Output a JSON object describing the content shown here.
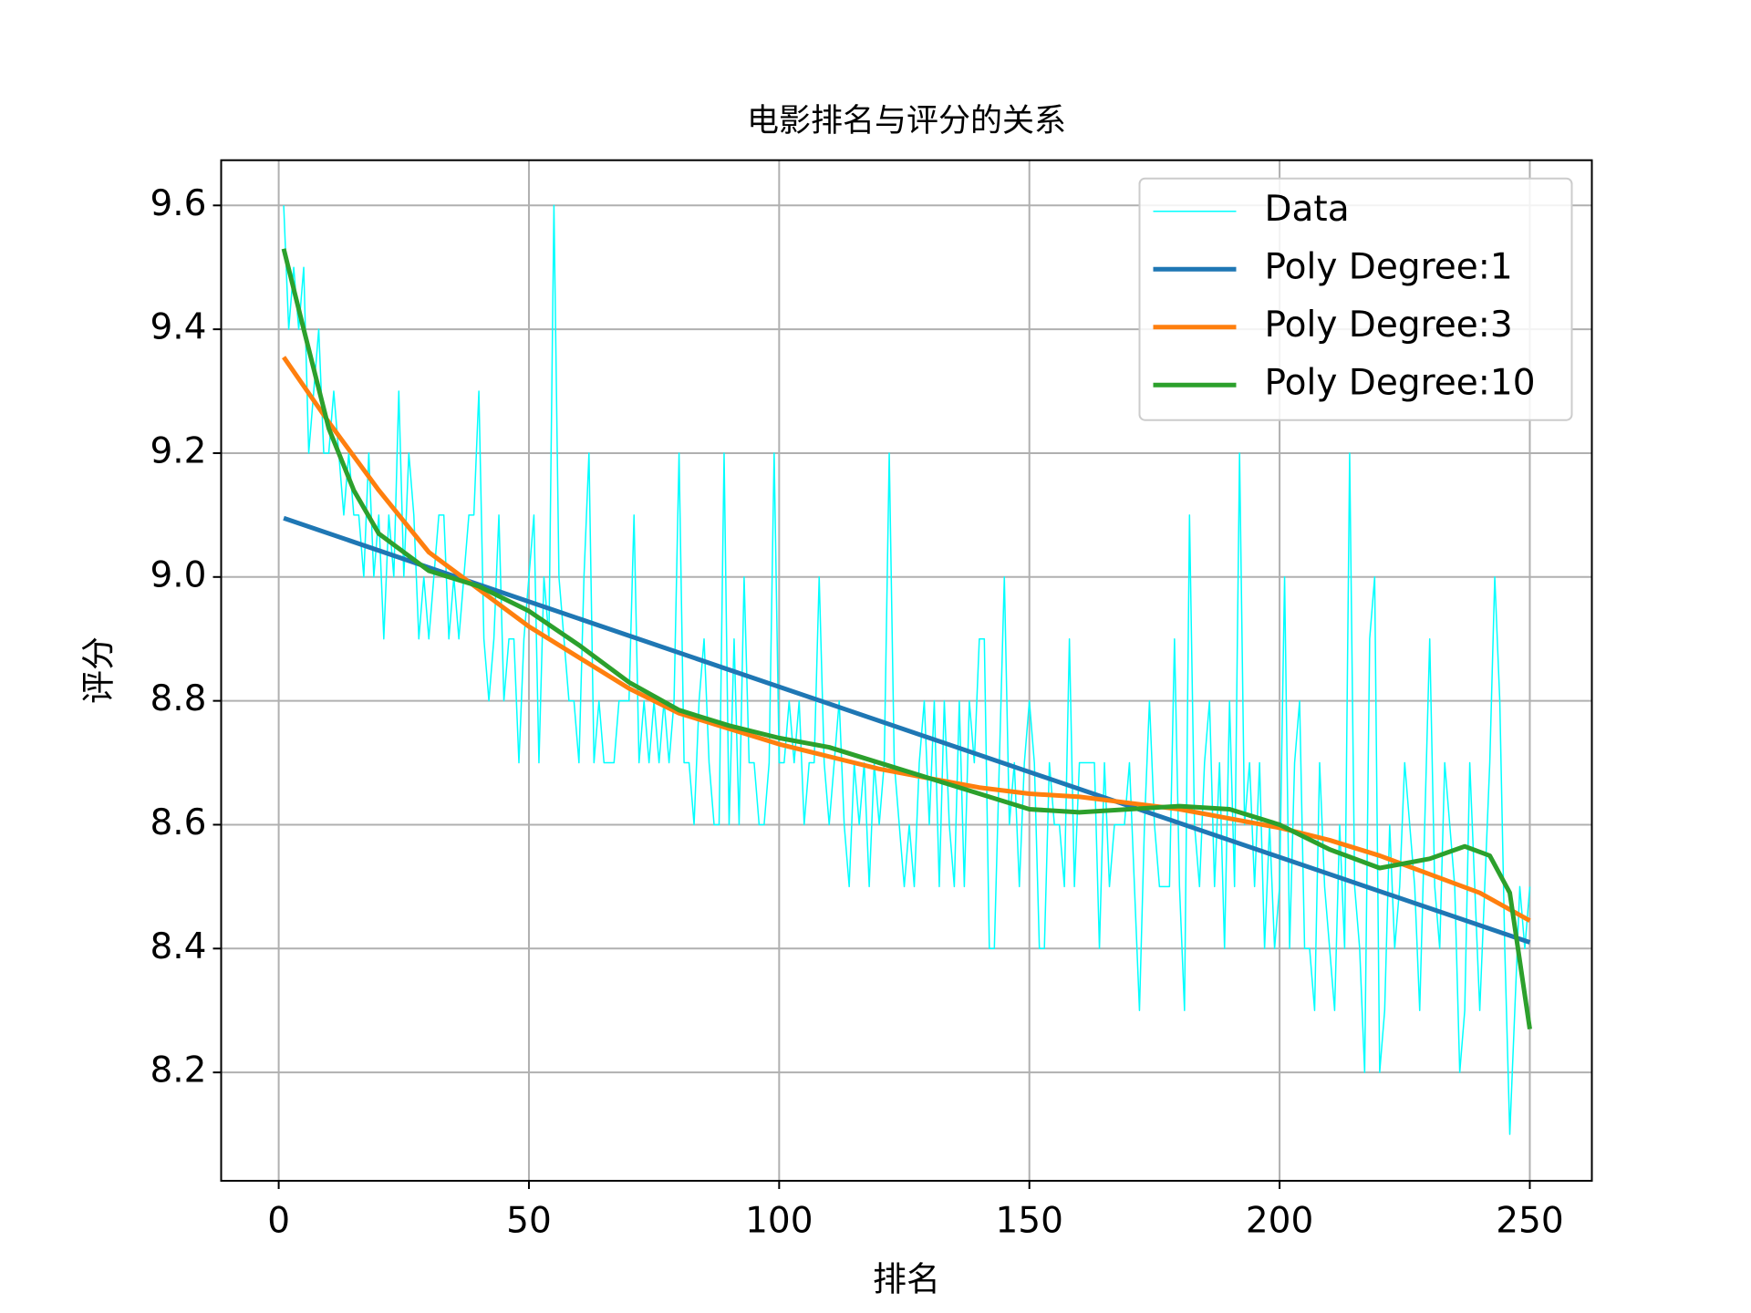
{
  "chart_data": {
    "type": "line",
    "title": "电影排名与评分的关系",
    "xlabel": "排名",
    "ylabel": "评分",
    "xlim": [
      -11.5,
      262.4
    ],
    "ylim": [
      8.025,
      9.673
    ],
    "xticks": [
      0,
      50,
      100,
      150,
      200,
      250
    ],
    "yticks": [
      8.2,
      8.4,
      8.6,
      8.8,
      {
        "value": 9,
        "label": "9.0"
      },
      9.2,
      9.4,
      9.6
    ],
    "grid": true,
    "legend": "upper right",
    "series": [
      {
        "name": "Data",
        "color": "#00ffff",
        "width": 1.5,
        "x": [
          1,
          2,
          3,
          4,
          5,
          6,
          7,
          8,
          9,
          10,
          11,
          12,
          13,
          14,
          15,
          16,
          17,
          18,
          19,
          20,
          21,
          22,
          23,
          24,
          25,
          26,
          27,
          28,
          29,
          30,
          31,
          32,
          33,
          34,
          35,
          36,
          37,
          38,
          39,
          40,
          41,
          42,
          43,
          44,
          45,
          46,
          47,
          48,
          49,
          50,
          51,
          52,
          53,
          54,
          55,
          56,
          57,
          58,
          59,
          60,
          61,
          62,
          63,
          64,
          65,
          66,
          67,
          68,
          69,
          70,
          71,
          72,
          73,
          74,
          75,
          76,
          77,
          78,
          79,
          80,
          81,
          82,
          83,
          84,
          85,
          86,
          87,
          88,
          89,
          90,
          91,
          92,
          93,
          94,
          95,
          96,
          97,
          98,
          99,
          100,
          101,
          102,
          103,
          104,
          105,
          106,
          107,
          108,
          109,
          110,
          111,
          112,
          113,
          114,
          115,
          116,
          117,
          118,
          119,
          120,
          121,
          122,
          123,
          124,
          125,
          126,
          127,
          128,
          129,
          130,
          131,
          132,
          133,
          134,
          135,
          136,
          137,
          138,
          139,
          140,
          141,
          142,
          143,
          144,
          145,
          146,
          147,
          148,
          149,
          150,
          151,
          152,
          153,
          154,
          155,
          156,
          157,
          158,
          159,
          160,
          161,
          162,
          163,
          164,
          165,
          166,
          167,
          168,
          169,
          170,
          171,
          172,
          173,
          174,
          175,
          176,
          177,
          178,
          179,
          180,
          181,
          182,
          183,
          184,
          185,
          186,
          187,
          188,
          189,
          190,
          191,
          192,
          193,
          194,
          195,
          196,
          197,
          198,
          199,
          200,
          201,
          202,
          203,
          204,
          205,
          206,
          207,
          208,
          209,
          210,
          211,
          212,
          213,
          214,
          215,
          216,
          217,
          218,
          219,
          220,
          221,
          222,
          223,
          224,
          225,
          226,
          227,
          228,
          229,
          230,
          231,
          232,
          233,
          234,
          235,
          236,
          237,
          238,
          239,
          240,
          241,
          242,
          243,
          244,
          245,
          246,
          247,
          248,
          249,
          250
        ],
        "values": [
          9.6,
          9.4,
          9.5,
          9.4,
          9.5,
          9.2,
          9.3,
          9.4,
          9.2,
          9.2,
          9.3,
          9.2,
          9.1,
          9.2,
          9.1,
          9.1,
          9.0,
          9.2,
          9.0,
          9.1,
          8.9,
          9.1,
          9.0,
          9.3,
          9.0,
          9.2,
          9.1,
          8.9,
          9.0,
          8.9,
          9.0,
          9.1,
          9.1,
          8.9,
          9.0,
          8.9,
          9.0,
          9.1,
          9.1,
          9.3,
          8.9,
          8.8,
          8.9,
          9.1,
          8.8,
          8.9,
          8.9,
          8.7,
          8.9,
          9.0,
          9.1,
          8.7,
          9.0,
          8.9,
          9.6,
          9.0,
          8.9,
          8.8,
          8.8,
          8.7,
          9.0,
          9.2,
          8.7,
          8.8,
          8.7,
          8.7,
          8.7,
          8.8,
          8.8,
          8.8,
          9.1,
          8.7,
          8.8,
          8.7,
          8.8,
          8.7,
          8.8,
          8.7,
          8.8,
          9.2,
          8.7,
          8.7,
          8.6,
          8.8,
          8.9,
          8.7,
          8.6,
          8.6,
          9.2,
          8.6,
          8.9,
          8.6,
          9.0,
          8.7,
          8.7,
          8.6,
          8.6,
          8.7,
          9.2,
          8.7,
          8.7,
          8.8,
          8.7,
          8.8,
          8.6,
          8.7,
          8.7,
          9.0,
          8.7,
          8.6,
          8.7,
          8.8,
          8.6,
          8.5,
          8.7,
          8.6,
          8.7,
          8.5,
          8.7,
          8.6,
          8.7,
          9.2,
          8.7,
          8.6,
          8.5,
          8.6,
          8.5,
          8.7,
          8.8,
          8.6,
          8.8,
          8.5,
          8.8,
          8.6,
          8.5,
          8.8,
          8.5,
          8.8,
          8.7,
          8.9,
          8.9,
          8.4,
          8.4,
          8.7,
          9.0,
          8.6,
          8.7,
          8.5,
          8.7,
          8.8,
          8.7,
          8.4,
          8.4,
          8.7,
          8.6,
          8.6,
          8.5,
          8.9,
          8.5,
          8.7,
          8.7,
          8.7,
          8.7,
          8.4,
          8.7,
          8.5,
          8.6,
          8.6,
          8.6,
          8.7,
          8.5,
          8.3,
          8.6,
          8.8,
          8.6,
          8.5,
          8.5,
          8.5,
          8.9,
          8.5,
          8.3,
          9.1,
          8.6,
          8.5,
          8.7,
          8.8,
          8.5,
          8.7,
          8.4,
          8.8,
          8.5,
          9.2,
          8.6,
          8.7,
          8.5,
          8.7,
          8.4,
          8.6,
          8.4,
          8.5,
          9.0,
          8.4,
          8.7,
          8.8,
          8.4,
          8.4,
          8.3,
          8.7,
          8.5,
          8.4,
          8.3,
          8.6,
          8.4,
          9.2,
          8.5,
          8.4,
          8.2,
          8.9,
          9.0,
          8.2,
          8.3,
          8.6,
          8.4,
          8.5,
          8.7,
          8.6,
          8.5,
          8.3,
          8.6,
          8.9,
          8.5,
          8.4,
          8.7,
          8.6,
          8.5,
          8.2,
          8.3,
          8.7,
          8.5,
          8.3,
          8.5,
          8.7,
          9.0,
          8.8,
          8.4,
          8.1,
          8.3,
          8.5,
          8.4,
          8.5
        ]
      },
      {
        "name": "Poly Degree:1",
        "color": "#1f77b4",
        "width": 5,
        "x": [
          1,
          250
        ],
        "values": [
          9.095,
          8.41
        ]
      },
      {
        "name": "Poly Degree:3",
        "color": "#ff7f0e",
        "width": 5,
        "x": [
          1,
          10,
          20,
          30,
          40,
          50,
          60,
          70,
          80,
          90,
          100,
          110,
          120,
          130,
          140,
          150,
          160,
          170,
          180,
          190,
          200,
          210,
          220,
          230,
          240,
          250
        ],
        "values": [
          9.355,
          9.25,
          9.14,
          9.04,
          8.98,
          8.92,
          8.87,
          8.82,
          8.78,
          8.755,
          8.73,
          8.71,
          8.69,
          8.675,
          8.66,
          8.65,
          8.645,
          8.635,
          8.625,
          8.61,
          8.595,
          8.575,
          8.55,
          8.52,
          8.49,
          8.445
        ]
      },
      {
        "name": "Poly Degree:10",
        "color": "#2ca02c",
        "width": 5,
        "x": [
          1,
          5,
          10,
          15,
          20,
          25,
          30,
          40,
          50,
          60,
          70,
          80,
          90,
          100,
          110,
          120,
          130,
          140,
          150,
          160,
          170,
          180,
          190,
          200,
          210,
          220,
          230,
          237,
          242,
          246,
          250
        ],
        "values": [
          9.53,
          9.4,
          9.24,
          9.14,
          9.07,
          9.04,
          9.01,
          8.985,
          8.945,
          8.89,
          8.83,
          8.785,
          8.76,
          8.74,
          8.725,
          8.7,
          8.675,
          8.65,
          8.625,
          8.62,
          8.625,
          8.63,
          8.625,
          8.6,
          8.56,
          8.53,
          8.545,
          8.565,
          8.55,
          8.49,
          8.27
        ]
      }
    ]
  }
}
